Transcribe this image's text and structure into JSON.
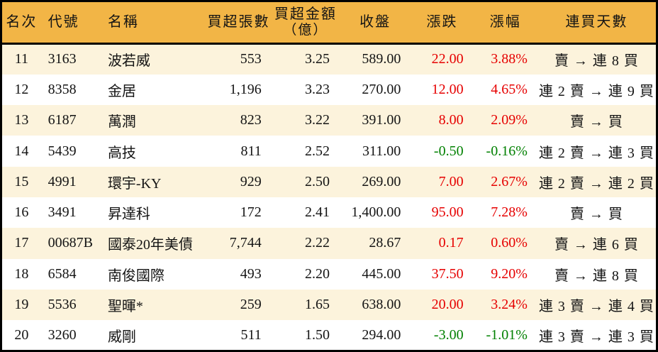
{
  "colors": {
    "header_bg": "#F2B546",
    "row_alt_bg": "#FCF3DC",
    "row_bg": "#FFFFFF",
    "up": "#E60000",
    "down": "#008000",
    "border": "#000000",
    "text": "#141414"
  },
  "headers": [
    {
      "line1": "名次",
      "line2": ""
    },
    {
      "line1": "代號",
      "line2": ""
    },
    {
      "line1": "名稱",
      "line2": ""
    },
    {
      "line1": "買超張數",
      "line2": ""
    },
    {
      "line1": "買超金額",
      "line2": "（億）"
    },
    {
      "line1": "收盤",
      "line2": ""
    },
    {
      "line1": "漲跌",
      "line2": ""
    },
    {
      "line1": "漲幅",
      "line2": ""
    },
    {
      "line1": "連買天數",
      "line2": ""
    }
  ],
  "chart_data": {
    "type": "table",
    "title": "",
    "columns": [
      "名次",
      "代號",
      "名稱",
      "買超張數",
      "買超金額（億）",
      "收盤",
      "漲跌",
      "漲幅",
      "連買天數"
    ],
    "rows": [
      {
        "rank": "11",
        "code": "3163",
        "name": "波若威",
        "volume": "553",
        "amount": "3.25",
        "close": "589.00",
        "change": "22.00",
        "change_pct": "3.88%",
        "streak": "賣 → 連 8 買",
        "trend": "up"
      },
      {
        "rank": "12",
        "code": "8358",
        "name": "金居",
        "volume": "1,196",
        "amount": "3.23",
        "close": "270.00",
        "change": "12.00",
        "change_pct": "4.65%",
        "streak": "連 2 賣 → 連 9 買",
        "trend": "up"
      },
      {
        "rank": "13",
        "code": "6187",
        "name": "萬潤",
        "volume": "823",
        "amount": "3.22",
        "close": "391.00",
        "change": "8.00",
        "change_pct": "2.09%",
        "streak": "賣 → 買",
        "trend": "up"
      },
      {
        "rank": "14",
        "code": "5439",
        "name": "高技",
        "volume": "811",
        "amount": "2.52",
        "close": "311.00",
        "change": "-0.50",
        "change_pct": "-0.16%",
        "streak": "連 2 賣 → 連 3 買",
        "trend": "down"
      },
      {
        "rank": "15",
        "code": "4991",
        "name": "環宇-KY",
        "volume": "929",
        "amount": "2.50",
        "close": "269.00",
        "change": "7.00",
        "change_pct": "2.67%",
        "streak": "連 2 賣 → 連 2 買",
        "trend": "up"
      },
      {
        "rank": "16",
        "code": "3491",
        "name": "昇達科",
        "volume": "172",
        "amount": "2.41",
        "close": "1,400.00",
        "change": "95.00",
        "change_pct": "7.28%",
        "streak": "賣 → 買",
        "trend": "up"
      },
      {
        "rank": "17",
        "code": "00687B",
        "name": "國泰20年美債",
        "volume": "7,744",
        "amount": "2.22",
        "close": "28.67",
        "change": "0.17",
        "change_pct": "0.60%",
        "streak": "賣 → 連 6 買",
        "trend": "up"
      },
      {
        "rank": "18",
        "code": "6584",
        "name": "南俊國際",
        "volume": "493",
        "amount": "2.20",
        "close": "445.00",
        "change": "37.50",
        "change_pct": "9.20%",
        "streak": "賣 → 連 8 買",
        "trend": "up"
      },
      {
        "rank": "19",
        "code": "5536",
        "name": "聖暉*",
        "volume": "259",
        "amount": "1.65",
        "close": "638.00",
        "change": "20.00",
        "change_pct": "3.24%",
        "streak": "連 3 賣 → 連 4 買",
        "trend": "up"
      },
      {
        "rank": "20",
        "code": "3260",
        "name": "威剛",
        "volume": "511",
        "amount": "1.50",
        "close": "294.00",
        "change": "-3.00",
        "change_pct": "-1.01%",
        "streak": "連 3 賣 → 連 3 買",
        "trend": "down"
      }
    ]
  }
}
